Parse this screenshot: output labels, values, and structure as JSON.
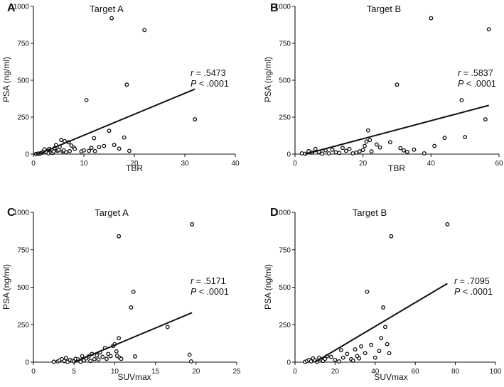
{
  "figure": {
    "background": "#ffffff",
    "ink": "#111111"
  },
  "chart_data": [
    {
      "panel": "A",
      "type": "scatter",
      "title": "Target A",
      "xlabel": "TBR",
      "ylabel": "PSA (ng/ml)",
      "xlim": [
        0,
        40
      ],
      "ylim": [
        0,
        1000
      ],
      "xticks": [
        "0",
        "10",
        "20",
        "30",
        "40"
      ],
      "yticks": [
        "0",
        "250",
        "500",
        "750",
        "1000"
      ],
      "annotation": {
        "r_label": "r",
        "r_value": "= .5473",
        "p_label": "P",
        "p_value": "< .0001"
      },
      "fit_line": {
        "x": [
          1,
          32
        ],
        "y": [
          0,
          440
        ]
      },
      "points": [
        [
          0.5,
          1
        ],
        [
          0.8,
          2
        ],
        [
          1,
          4
        ],
        [
          1.2,
          3
        ],
        [
          1.5,
          6
        ],
        [
          1.8,
          12
        ],
        [
          2,
          20
        ],
        [
          2.2,
          32
        ],
        [
          2.5,
          15
        ],
        [
          3,
          30
        ],
        [
          3,
          5
        ],
        [
          3.2,
          35
        ],
        [
          3.5,
          10
        ],
        [
          3.8,
          8
        ],
        [
          4,
          18
        ],
        [
          4.2,
          40
        ],
        [
          4.5,
          62
        ],
        [
          4.8,
          22
        ],
        [
          5,
          28
        ],
        [
          5.2,
          50
        ],
        [
          5.5,
          95
        ],
        [
          5.8,
          18
        ],
        [
          6,
          25
        ],
        [
          6.2,
          88
        ],
        [
          6.5,
          12
        ],
        [
          7,
          80
        ],
        [
          7.2,
          20
        ],
        [
          7.5,
          58
        ],
        [
          8,
          45
        ],
        [
          8.2,
          35
        ],
        [
          9.5,
          18
        ],
        [
          10,
          25
        ],
        [
          10.5,
          365
        ],
        [
          11,
          22
        ],
        [
          11.5,
          42
        ],
        [
          12,
          108
        ],
        [
          12.2,
          20
        ],
        [
          13,
          48
        ],
        [
          14,
          55
        ],
        [
          15,
          158
        ],
        [
          15.5,
          920
        ],
        [
          16,
          62
        ],
        [
          17,
          37
        ],
        [
          18,
          112
        ],
        [
          18.5,
          470
        ],
        [
          19,
          22
        ],
        [
          22,
          840
        ],
        [
          32,
          235
        ]
      ]
    },
    {
      "panel": "B",
      "type": "scatter",
      "title": "Target B",
      "xlabel": "TBR",
      "ylabel": "PSA (ng/ml)",
      "xlim": [
        0,
        60
      ],
      "ylim": [
        0,
        1000
      ],
      "xticks": [
        "0",
        "20",
        "40",
        "60"
      ],
      "yticks": [
        "0",
        "250",
        "500",
        "750",
        "1000"
      ],
      "annotation": {
        "r_label": "r",
        "r_value": "= .5837",
        "p_label": "P",
        "p_value": "< .0001"
      },
      "fit_line": {
        "x": [
          3,
          57
        ],
        "y": [
          0,
          330
        ]
      },
      "points": [
        [
          2,
          5
        ],
        [
          3,
          2
        ],
        [
          4,
          20
        ],
        [
          5,
          10
        ],
        [
          6,
          35
        ],
        [
          7,
          15
        ],
        [
          8,
          3
        ],
        [
          9,
          25
        ],
        [
          10,
          5
        ],
        [
          11,
          30
        ],
        [
          12,
          12
        ],
        [
          13,
          8
        ],
        [
          14,
          42
        ],
        [
          15,
          22
        ],
        [
          16,
          35
        ],
        [
          17,
          5
        ],
        [
          18,
          10
        ],
        [
          19,
          18
        ],
        [
          20,
          28
        ],
        [
          20.5,
          55
        ],
        [
          21,
          85
        ],
        [
          21.5,
          160
        ],
        [
          22,
          95
        ],
        [
          22.5,
          18
        ],
        [
          24,
          65
        ],
        [
          25,
          45
        ],
        [
          28,
          80
        ],
        [
          30,
          470
        ],
        [
          31,
          40
        ],
        [
          32,
          25
        ],
        [
          33,
          15
        ],
        [
          35,
          30
        ],
        [
          38,
          5
        ],
        [
          40,
          920
        ],
        [
          41,
          55
        ],
        [
          44,
          110
        ],
        [
          49,
          365
        ],
        [
          50,
          115
        ],
        [
          56,
          235
        ],
        [
          57,
          845
        ]
      ]
    },
    {
      "panel": "C",
      "type": "scatter",
      "title": "Target A",
      "xlabel": "SUVmax",
      "ylabel": "PSA (ng/ml)",
      "xlim": [
        0,
        25
      ],
      "ylim": [
        0,
        1000
      ],
      "xticks": [
        "0",
        "5",
        "10",
        "15",
        "20",
        "25"
      ],
      "yticks": [
        "0",
        "250",
        "500",
        "750",
        "1000"
      ],
      "annotation": {
        "r_label": "r",
        "r_value": "= .5171",
        "p_label": "P",
        "p_value": "< .0001"
      },
      "fit_line": {
        "x": [
          5,
          19.5
        ],
        "y": [
          0,
          330
        ]
      },
      "points": [
        [
          2.5,
          3
        ],
        [
          3,
          5
        ],
        [
          3.2,
          12
        ],
        [
          3.5,
          20
        ],
        [
          3.8,
          8
        ],
        [
          4,
          28
        ],
        [
          4.2,
          2
        ],
        [
          4.5,
          15
        ],
        [
          4.8,
          10
        ],
        [
          5,
          5
        ],
        [
          5.2,
          22
        ],
        [
          5.5,
          18
        ],
        [
          5.8,
          3
        ],
        [
          6,
          40
        ],
        [
          6.2,
          12
        ],
        [
          6.5,
          25
        ],
        [
          6.8,
          38
        ],
        [
          7,
          8
        ],
        [
          7.2,
          55
        ],
        [
          7.5,
          20
        ],
        [
          7.8,
          45
        ],
        [
          8,
          18
        ],
        [
          8.2,
          65
        ],
        [
          8.5,
          35
        ],
        [
          8.8,
          95
        ],
        [
          9,
          22
        ],
        [
          9.2,
          55
        ],
        [
          9.5,
          40
        ],
        [
          9.8,
          108
        ],
        [
          10,
          120
        ],
        [
          10.2,
          72
        ],
        [
          10.3,
          42
        ],
        [
          10.5,
          160
        ],
        [
          10.6,
          30
        ],
        [
          10.8,
          22
        ],
        [
          10.5,
          840
        ],
        [
          12,
          365
        ],
        [
          12.3,
          470
        ],
        [
          12.5,
          38
        ],
        [
          16.5,
          235
        ],
        [
          19.2,
          50
        ],
        [
          19.4,
          5
        ],
        [
          19.5,
          920
        ]
      ]
    },
    {
      "panel": "D",
      "type": "scatter",
      "title": "Target B",
      "xlabel": "SUVmax",
      "ylabel": "PSA (ng/ml)",
      "xlim": [
        0,
        100
      ],
      "ylim": [
        0,
        1000
      ],
      "xticks": [
        "0",
        "20",
        "40",
        "60",
        "80",
        "100"
      ],
      "yticks": [
        "0",
        "250",
        "500",
        "750",
        "1000"
      ],
      "annotation": {
        "r_label": "r",
        "r_value": "= .7095",
        "p_label": "P",
        "p_value": "< .0001"
      },
      "fit_line": {
        "x": [
          10,
          76
        ],
        "y": [
          0,
          525
        ]
      },
      "points": [
        [
          5,
          2
        ],
        [
          6,
          8
        ],
        [
          7,
          15
        ],
        [
          8,
          5
        ],
        [
          9,
          25
        ],
        [
          10,
          12
        ],
        [
          11,
          3
        ],
        [
          12,
          30
        ],
        [
          13,
          18
        ],
        [
          14,
          8
        ],
        [
          15,
          22
        ],
        [
          16,
          40
        ],
        [
          18,
          35
        ],
        [
          20,
          15
        ],
        [
          22,
          5
        ],
        [
          23,
          80
        ],
        [
          24,
          30
        ],
        [
          26,
          55
        ],
        [
          28,
          20
        ],
        [
          29,
          10
        ],
        [
          30,
          85
        ],
        [
          31,
          40
        ],
        [
          32,
          25
        ],
        [
          33,
          105
        ],
        [
          35,
          60
        ],
        [
          36,
          470
        ],
        [
          38,
          115
        ],
        [
          40,
          30
        ],
        [
          42,
          75
        ],
        [
          43,
          160
        ],
        [
          44,
          365
        ],
        [
          45,
          235
        ],
        [
          46,
          120
        ],
        [
          47,
          60
        ],
        [
          48,
          840
        ],
        [
          76,
          920
        ]
      ]
    }
  ]
}
